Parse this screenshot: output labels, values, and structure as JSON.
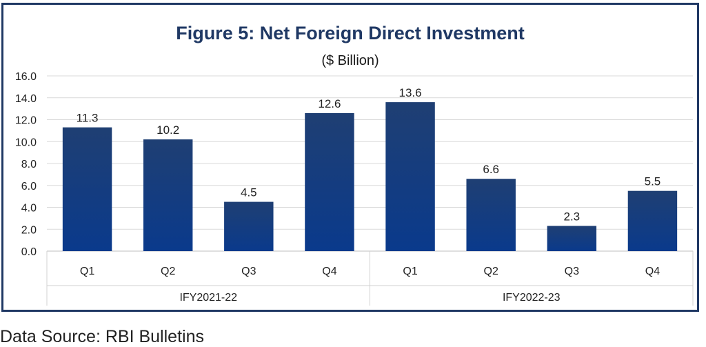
{
  "footer": {
    "source": "Data Source: RBI Bulletins"
  },
  "chart_data": {
    "type": "bar",
    "title": "Figure 5: Net Foreign Direct Investment",
    "subtitle": "($ Billion)",
    "xlabel": "",
    "ylabel": "",
    "ylim": [
      0,
      16
    ],
    "yticks": [
      "0.0",
      "2.0",
      "4.0",
      "6.0",
      "8.0",
      "10.0",
      "12.0",
      "14.0",
      "16.0"
    ],
    "grid": true,
    "legend": "none",
    "bar_color_top": "#1f3f73",
    "bar_color_bottom": "#0a3a8c",
    "groups": [
      {
        "label": "IFY2021-22",
        "categories": [
          "Q1",
          "Q2",
          "Q3",
          "Q4"
        ],
        "values": [
          11.3,
          10.2,
          4.5,
          12.6
        ]
      },
      {
        "label": "IFY2022-23",
        "categories": [
          "Q1",
          "Q2",
          "Q3",
          "Q4"
        ],
        "values": [
          13.6,
          6.6,
          2.3,
          5.5
        ]
      }
    ]
  }
}
